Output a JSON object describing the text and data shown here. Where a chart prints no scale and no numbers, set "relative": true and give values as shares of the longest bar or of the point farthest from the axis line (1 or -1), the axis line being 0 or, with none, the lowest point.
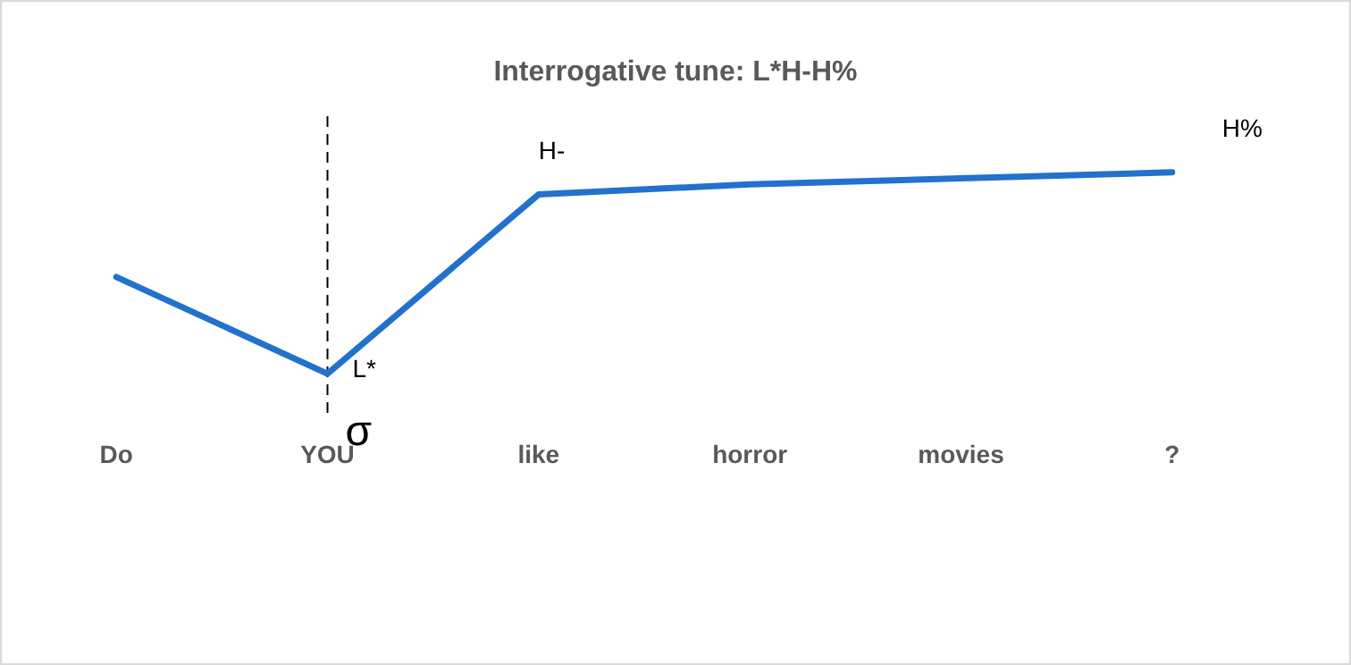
{
  "chart_data": {
    "type": "line",
    "title": "Interrogative tune: L*H-H%",
    "categories": [
      "Do",
      "YOU",
      "like",
      "horror",
      "movies",
      "?"
    ],
    "relative": true,
    "series": [
      {
        "color": "#2271cc",
        "values": [
          0.48,
          0,
          0.89,
          0.94,
          0.97,
          1
        ]
      }
    ],
    "marker": "none",
    "line_style": "solid",
    "grid": false,
    "legend": false,
    "annotations": [
      {
        "text": "L*",
        "x": "YOU",
        "y": 0
      },
      {
        "text": "H-",
        "x": "like",
        "y": 0.89
      },
      {
        "text": "H%",
        "x": "?",
        "y": 1
      }
    ],
    "ref_lines": [
      {
        "axis": "x",
        "value": "YOU",
        "label": "σ",
        "line_style": "dashed",
        "color": "#000000"
      }
    ]
  }
}
